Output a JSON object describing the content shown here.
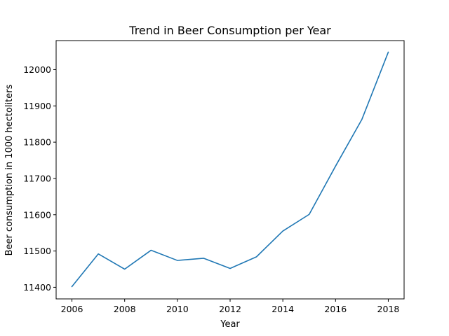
{
  "chart_data": {
    "type": "line",
    "title": "Trend in Beer Consumption per Year",
    "xlabel": "Year",
    "ylabel": "Beer consumption in 1000 hectoliters",
    "xlim": [
      2005.4,
      2018.6
    ],
    "ylim": [
      11368,
      12080
    ],
    "xticks": [
      2006,
      2008,
      2010,
      2012,
      2014,
      2016,
      2018
    ],
    "yticks": [
      11400,
      11500,
      11600,
      11700,
      11800,
      11900,
      12000
    ],
    "grid": false,
    "line_color": "#1f77b4",
    "series": [
      {
        "x": [
          2006,
          2007,
          2008,
          2009,
          2010,
          2011,
          2012,
          2013,
          2014,
          2015,
          2016,
          2017,
          2018
        ],
        "values": [
          11402,
          11492,
          11450,
          11502,
          11474,
          11480,
          11452,
          11484,
          11555,
          11601,
          11734,
          11863,
          12048
        ]
      }
    ]
  }
}
